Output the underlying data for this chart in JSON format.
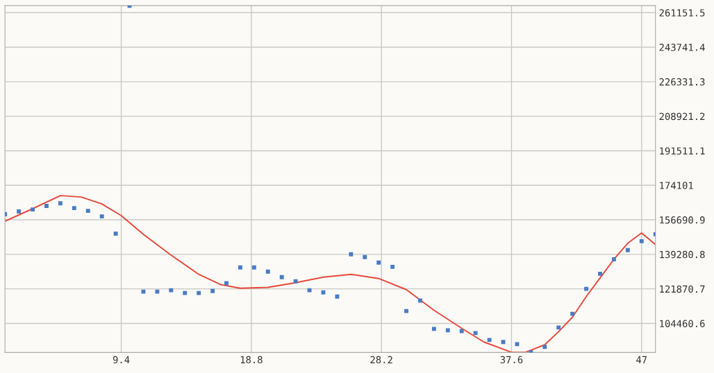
{
  "chart_data": {
    "type": "scatter",
    "xlim": [
      1,
      48
    ],
    "ylim": [
      89800,
      264700
    ],
    "xticks": [
      9.4,
      18.8,
      28.2,
      37.6,
      47
    ],
    "yticks": [
      104460.6,
      121870.7,
      139280.8,
      156690.9,
      174101,
      191511.1,
      208921.2,
      226331.3,
      243741.4,
      261151.5
    ],
    "grid": true,
    "series": [
      {
        "marker": "square",
        "color": "#4a7cc4",
        "x": [
          1,
          2,
          3,
          4,
          5,
          6,
          7,
          8,
          9,
          10,
          11,
          12,
          13,
          14,
          15,
          16,
          17,
          18,
          19,
          20,
          21,
          22,
          23,
          24,
          25,
          26,
          27,
          28,
          29,
          30,
          31,
          32,
          33,
          34,
          35,
          36,
          37,
          38,
          39,
          40,
          41,
          42,
          43,
          44,
          45,
          46,
          47,
          48
        ],
        "values": [
          159500,
          160900,
          161900,
          163700,
          165000,
          162600,
          161200,
          158400,
          149700,
          264600,
          120500,
          120500,
          121200,
          119800,
          119800,
          120800,
          124700,
          132700,
          132700,
          130600,
          127800,
          125700,
          121200,
          120100,
          118000,
          139300,
          137900,
          135100,
          133000,
          110700,
          116000,
          101700,
          101000,
          100600,
          99600,
          96100,
          95100,
          94000,
          89900,
          92600,
          102400,
          109300,
          121900,
          129500,
          136800,
          141400,
          145900,
          149400
        ]
      },
      {
        "type": "line",
        "marker": "none",
        "color": "#e8483a",
        "x": [
          1,
          3,
          5,
          6.5,
          8,
          9.4,
          11,
          13,
          15,
          16.6,
          18,
          20,
          22,
          24,
          26,
          28,
          30,
          32,
          34,
          35.6,
          37.6,
          38.6,
          40,
          41,
          42,
          43,
          44,
          45,
          46,
          47,
          48
        ],
        "values": [
          156000,
          162300,
          168900,
          168200,
          164700,
          158800,
          149400,
          138900,
          129200,
          124000,
          122200,
          122600,
          125000,
          127800,
          129200,
          127100,
          121500,
          111100,
          102000,
          95100,
          89900,
          89900,
          93700,
          100300,
          107600,
          118000,
          127400,
          136800,
          144900,
          150100,
          144200
        ]
      }
    ]
  }
}
